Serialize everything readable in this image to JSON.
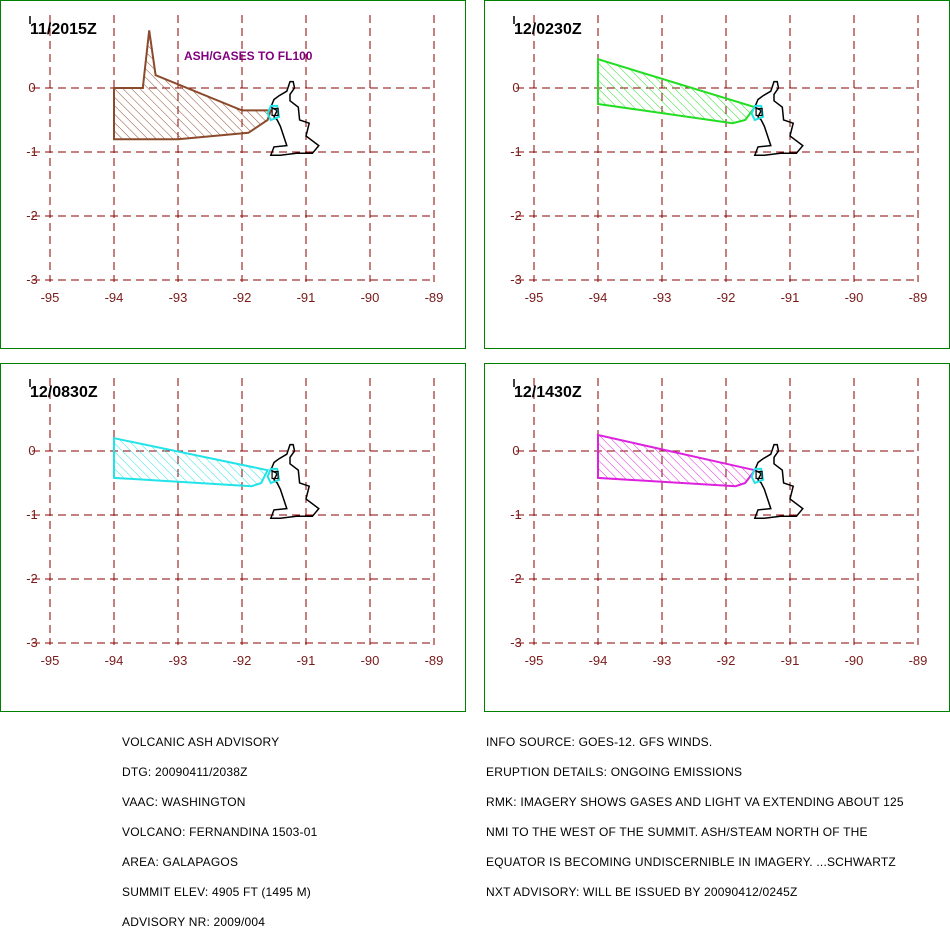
{
  "panels": [
    {
      "time": "11/2015Z",
      "cloud_label": "ASH/GASES  TO FL100",
      "polygon_color": "#8B4A2B",
      "polygon": [
        [
          -93.45,
          0.9
        ],
        [
          -93.35,
          0.2
        ],
        [
          -92.0,
          -0.35
        ],
        [
          -91.55,
          -0.35
        ],
        [
          -91.6,
          -0.5
        ],
        [
          -91.9,
          -0.7
        ],
        [
          -93.0,
          -0.8
        ],
        [
          -94.0,
          -0.8
        ],
        [
          -94.0,
          0.0
        ],
        [
          -93.55,
          0.0
        ]
      ]
    },
    {
      "time": "12/0230Z",
      "cloud_label": "",
      "polygon_color": "#22DD22",
      "polygon": [
        [
          -94.0,
          0.45
        ],
        [
          -91.55,
          -0.3
        ],
        [
          -91.7,
          -0.5
        ],
        [
          -91.9,
          -0.55
        ],
        [
          -94.0,
          -0.25
        ]
      ]
    },
    {
      "time": "12/0830Z",
      "cloud_label": "",
      "polygon_color": "#22E3E8",
      "polygon": [
        [
          -94.0,
          0.2
        ],
        [
          -91.6,
          -0.3
        ],
        [
          -91.7,
          -0.5
        ],
        [
          -91.85,
          -0.55
        ],
        [
          -94.0,
          -0.42
        ]
      ]
    },
    {
      "time": "12/1430Z",
      "cloud_label": "",
      "polygon_color": "#DD22DD",
      "polygon": [
        [
          -94.0,
          0.25
        ],
        [
          -91.55,
          -0.3
        ],
        [
          -91.7,
          -0.5
        ],
        [
          -91.85,
          -0.55
        ],
        [
          -94.0,
          -0.42
        ]
      ]
    }
  ],
  "axes": {
    "lon_ticks": [
      "-95",
      "-94",
      "-93",
      "-92",
      "-91",
      "-90",
      "-89"
    ],
    "lat_ticks": [
      "0",
      "-1",
      "-2",
      "-3"
    ],
    "lon_range": [
      -95,
      -89
    ],
    "lat_range": [
      -3,
      0.5
    ]
  },
  "colors": {
    "frame": "#008000",
    "grid": "#8B0000",
    "label": "#7A1A1A",
    "island": "#000000",
    "vent": "#22E3E8",
    "annotation": "#800080"
  },
  "advisory_left": [
    "VOLCANIC ASH ADVISORY",
    "DTG: 20090411/2038Z",
    "VAAC: WASHINGTON",
    "VOLCANO: FERNANDINA 1503-01",
    "AREA: GALAPAGOS",
    "SUMMIT ELEV: 4905 FT (1495 M)",
    "ADVISORY NR: 2009/004"
  ],
  "advisory_right": [
    "INFO SOURCE: GOES-12. GFS WINDS.",
    "ERUPTION DETAILS: ONGOING EMISSIONS",
    "RMK: IMAGERY SHOWS GASES AND LIGHT VA EXTENDING ABOUT 125",
    "NMI TO THE WEST OF THE SUMMIT. ASH/STEAM NORTH OF THE",
    "EQUATOR IS BECOMING UNDISCERNIBLE IN IMAGERY. ...SCHWARTZ",
    "NXT ADVISORY: WILL BE ISSUED BY 20090412/0245Z"
  ]
}
